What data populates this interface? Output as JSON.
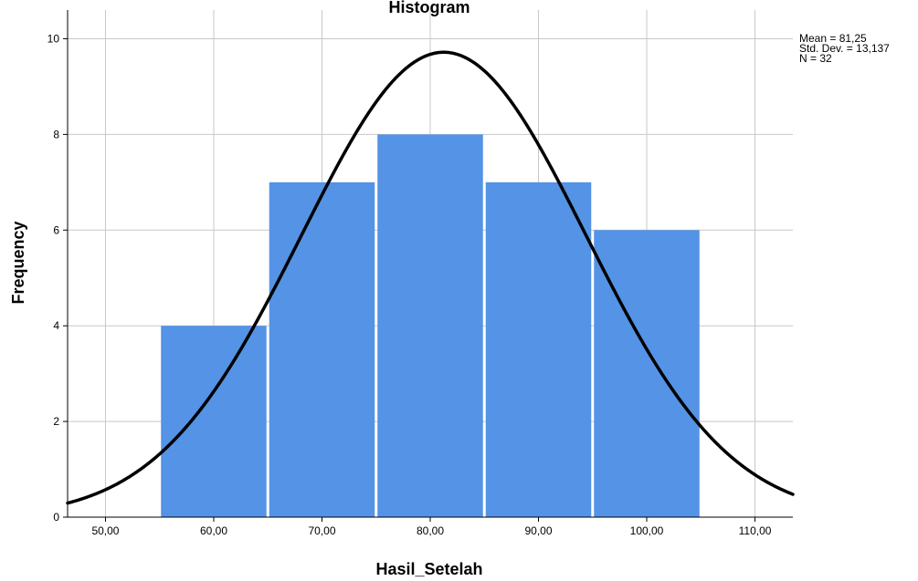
{
  "chart_data": {
    "type": "bar",
    "title": "Histogram",
    "xlabel": "Hasil_Setelah",
    "ylabel": "Frequency",
    "bins": [
      {
        "from": 55,
        "to": 65,
        "value": 4
      },
      {
        "from": 65,
        "to": 75,
        "value": 7
      },
      {
        "from": 75,
        "to": 85,
        "value": 8
      },
      {
        "from": 85,
        "to": 95,
        "value": 7
      },
      {
        "from": 95,
        "to": 105,
        "value": 6
      }
    ],
    "xlim": [
      46.5,
      113.5
    ],
    "ylim": [
      0,
      10.6
    ],
    "xticks": [
      {
        "value": 50,
        "label": "50,00"
      },
      {
        "value": 60,
        "label": "60,00"
      },
      {
        "value": 70,
        "label": "70,00"
      },
      {
        "value": 80,
        "label": "80,00"
      },
      {
        "value": 90,
        "label": "90,00"
      },
      {
        "value": 100,
        "label": "100,00"
      },
      {
        "value": 110,
        "label": "110,00"
      }
    ],
    "yticks": [
      {
        "value": 0,
        "label": "0"
      },
      {
        "value": 2,
        "label": "2"
      },
      {
        "value": 4,
        "label": "4"
      },
      {
        "value": 6,
        "label": "6"
      },
      {
        "value": 8,
        "label": "8"
      },
      {
        "value": 10,
        "label": "10"
      }
    ],
    "normal_curve": {
      "mean": 81.25,
      "sd": 13.137,
      "n": 32,
      "bin_width": 10
    },
    "stats_text": [
      "Mean = 81,25",
      "Std. Dev. = 13,137",
      "N = 32"
    ],
    "grid": true,
    "legend": "top-right",
    "colors": {
      "bar": "#5493E5",
      "bar_edge": "#ffffff",
      "curve": "#000000",
      "grid": "#c8c8c8",
      "axis": "#000000"
    }
  }
}
